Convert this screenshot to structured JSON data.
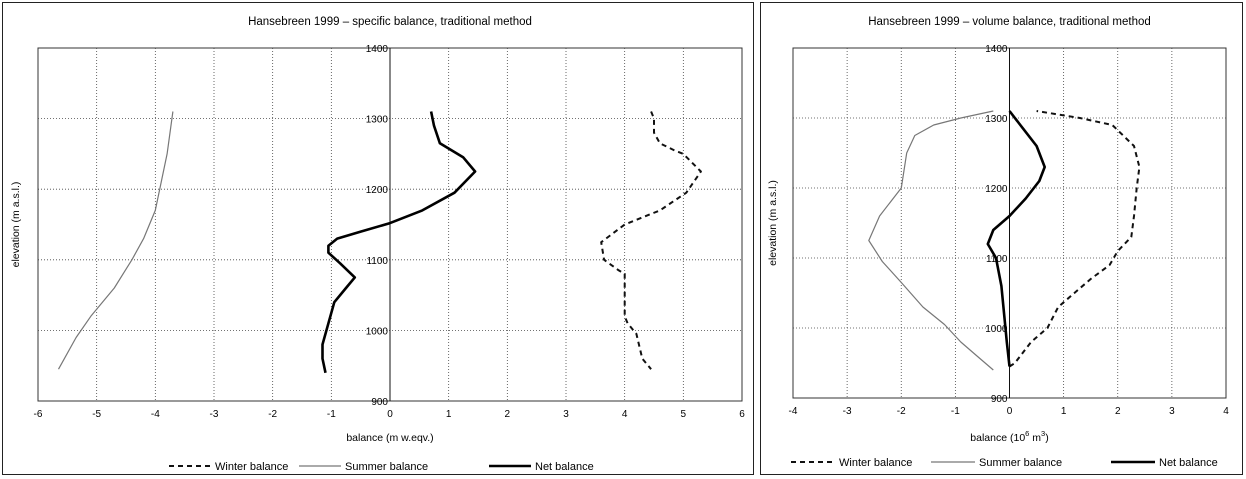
{
  "chart_data": [
    {
      "type": "line",
      "title": "Hansebreen 1999 –  specific balance, traditional method",
      "xlabel": "balance (m w.eqv.)",
      "ylabel": "elevation (m a.s.l.)",
      "xlim": [
        -6,
        6
      ],
      "ylim": [
        900,
        1400
      ],
      "x_ticks": [
        "-6",
        "-5",
        "-4",
        "-3",
        "-2",
        "-1",
        "0",
        "1",
        "2",
        "3",
        "4",
        "5",
        "6"
      ],
      "y_ticks": [
        "900",
        "1000",
        "1100",
        "1200",
        "1300",
        "1400"
      ],
      "grid": true,
      "legend_position": "bottom",
      "series": [
        {
          "name": "Winter balance",
          "style": "dashed",
          "points": [
            [
              4.45,
              1310
            ],
            [
              4.5,
              1300
            ],
            [
              4.5,
              1280
            ],
            [
              4.6,
              1265
            ],
            [
              4.85,
              1255
            ],
            [
              5.0,
              1250
            ],
            [
              5.3,
              1225
            ],
            [
              5.05,
              1195
            ],
            [
              4.6,
              1170
            ],
            [
              4.0,
              1150
            ],
            [
              3.6,
              1125
            ],
            [
              3.65,
              1100
            ],
            [
              3.9,
              1085
            ],
            [
              4.0,
              1080
            ],
            [
              4.0,
              1020
            ],
            [
              4.05,
              1010
            ],
            [
              4.2,
              995
            ],
            [
              4.3,
              960
            ],
            [
              4.45,
              945
            ]
          ]
        },
        {
          "name": "Summer balance",
          "style": "thin",
          "points": [
            [
              -5.65,
              945
            ],
            [
              -5.55,
              960
            ],
            [
              -5.35,
              990
            ],
            [
              -5.1,
              1020
            ],
            [
              -4.7,
              1060
            ],
            [
              -4.4,
              1100
            ],
            [
              -4.2,
              1130
            ],
            [
              -4.0,
              1170
            ],
            [
              -3.9,
              1210
            ],
            [
              -3.8,
              1250
            ],
            [
              -3.7,
              1310
            ]
          ]
        },
        {
          "name": "Net balance",
          "style": "thick",
          "points": [
            [
              -1.1,
              940
            ],
            [
              -1.15,
              960
            ],
            [
              -1.15,
              980
            ],
            [
              -1.05,
              1010
            ],
            [
              -0.95,
              1040
            ],
            [
              -0.75,
              1060
            ],
            [
              -0.6,
              1075
            ],
            [
              -0.85,
              1095
            ],
            [
              -1.05,
              1110
            ],
            [
              -1.05,
              1120
            ],
            [
              -0.9,
              1130
            ],
            [
              -0.5,
              1140
            ],
            [
              0.0,
              1152
            ],
            [
              0.55,
              1170
            ],
            [
              1.1,
              1195
            ],
            [
              1.45,
              1225
            ],
            [
              1.25,
              1245
            ],
            [
              0.85,
              1265
            ],
            [
              0.75,
              1290
            ],
            [
              0.7,
              1310
            ]
          ]
        }
      ]
    },
    {
      "type": "line",
      "title": "Hansebreen 1999 –  volume balance, traditional method",
      "xlabel": "balance (10",
      "xlabel_sup": "6",
      "xlabel_suffix": " m",
      "xlabel_sup2": "3",
      "xlabel_end": ")",
      "ylabel": "elevation (m a.s.l.)",
      "xlim": [
        -4,
        4
      ],
      "ylim": [
        900,
        1400
      ],
      "x_ticks": [
        "-4",
        "-3",
        "-2",
        "-1",
        "0",
        "1",
        "2",
        "3",
        "4"
      ],
      "y_ticks": [
        "900",
        "1000",
        "1100",
        "1200",
        "1300",
        "1400"
      ],
      "grid": true,
      "legend_position": "bottom",
      "series": [
        {
          "name": "Winter balance",
          "style": "dashed",
          "points": [
            [
              0.0,
              945
            ],
            [
              0.1,
              950
            ],
            [
              0.25,
              965
            ],
            [
              0.4,
              980
            ],
            [
              0.7,
              1000
            ],
            [
              0.9,
              1030
            ],
            [
              1.2,
              1050
            ],
            [
              1.5,
              1070
            ],
            [
              1.85,
              1090
            ],
            [
              2.0,
              1110
            ],
            [
              2.25,
              1130
            ],
            [
              2.3,
              1160
            ],
            [
              2.35,
              1200
            ],
            [
              2.4,
              1230
            ],
            [
              2.3,
              1260
            ],
            [
              1.9,
              1290
            ],
            [
              1.3,
              1300
            ],
            [
              0.5,
              1310
            ]
          ]
        },
        {
          "name": "Summer balance",
          "style": "thin",
          "points": [
            [
              -0.3,
              940
            ],
            [
              -0.6,
              960
            ],
            [
              -0.9,
              980
            ],
            [
              -1.2,
              1005
            ],
            [
              -1.6,
              1030
            ],
            [
              -2.0,
              1065
            ],
            [
              -2.35,
              1095
            ],
            [
              -2.6,
              1125
            ],
            [
              -2.4,
              1160
            ],
            [
              -2.0,
              1200
            ],
            [
              -1.9,
              1250
            ],
            [
              -1.75,
              1275
            ],
            [
              -1.4,
              1290
            ],
            [
              -0.9,
              1300
            ],
            [
              -0.3,
              1310
            ]
          ]
        },
        {
          "name": "Net balance",
          "style": "thick",
          "points": [
            [
              0.0,
              945
            ],
            [
              -0.05,
              980
            ],
            [
              -0.1,
              1020
            ],
            [
              -0.15,
              1060
            ],
            [
              -0.25,
              1100
            ],
            [
              -0.4,
              1120
            ],
            [
              -0.3,
              1140
            ],
            [
              0.0,
              1160
            ],
            [
              0.3,
              1185
            ],
            [
              0.55,
              1210
            ],
            [
              0.65,
              1230
            ],
            [
              0.5,
              1260
            ],
            [
              0.2,
              1290
            ],
            [
              0.0,
              1310
            ]
          ]
        }
      ]
    }
  ]
}
